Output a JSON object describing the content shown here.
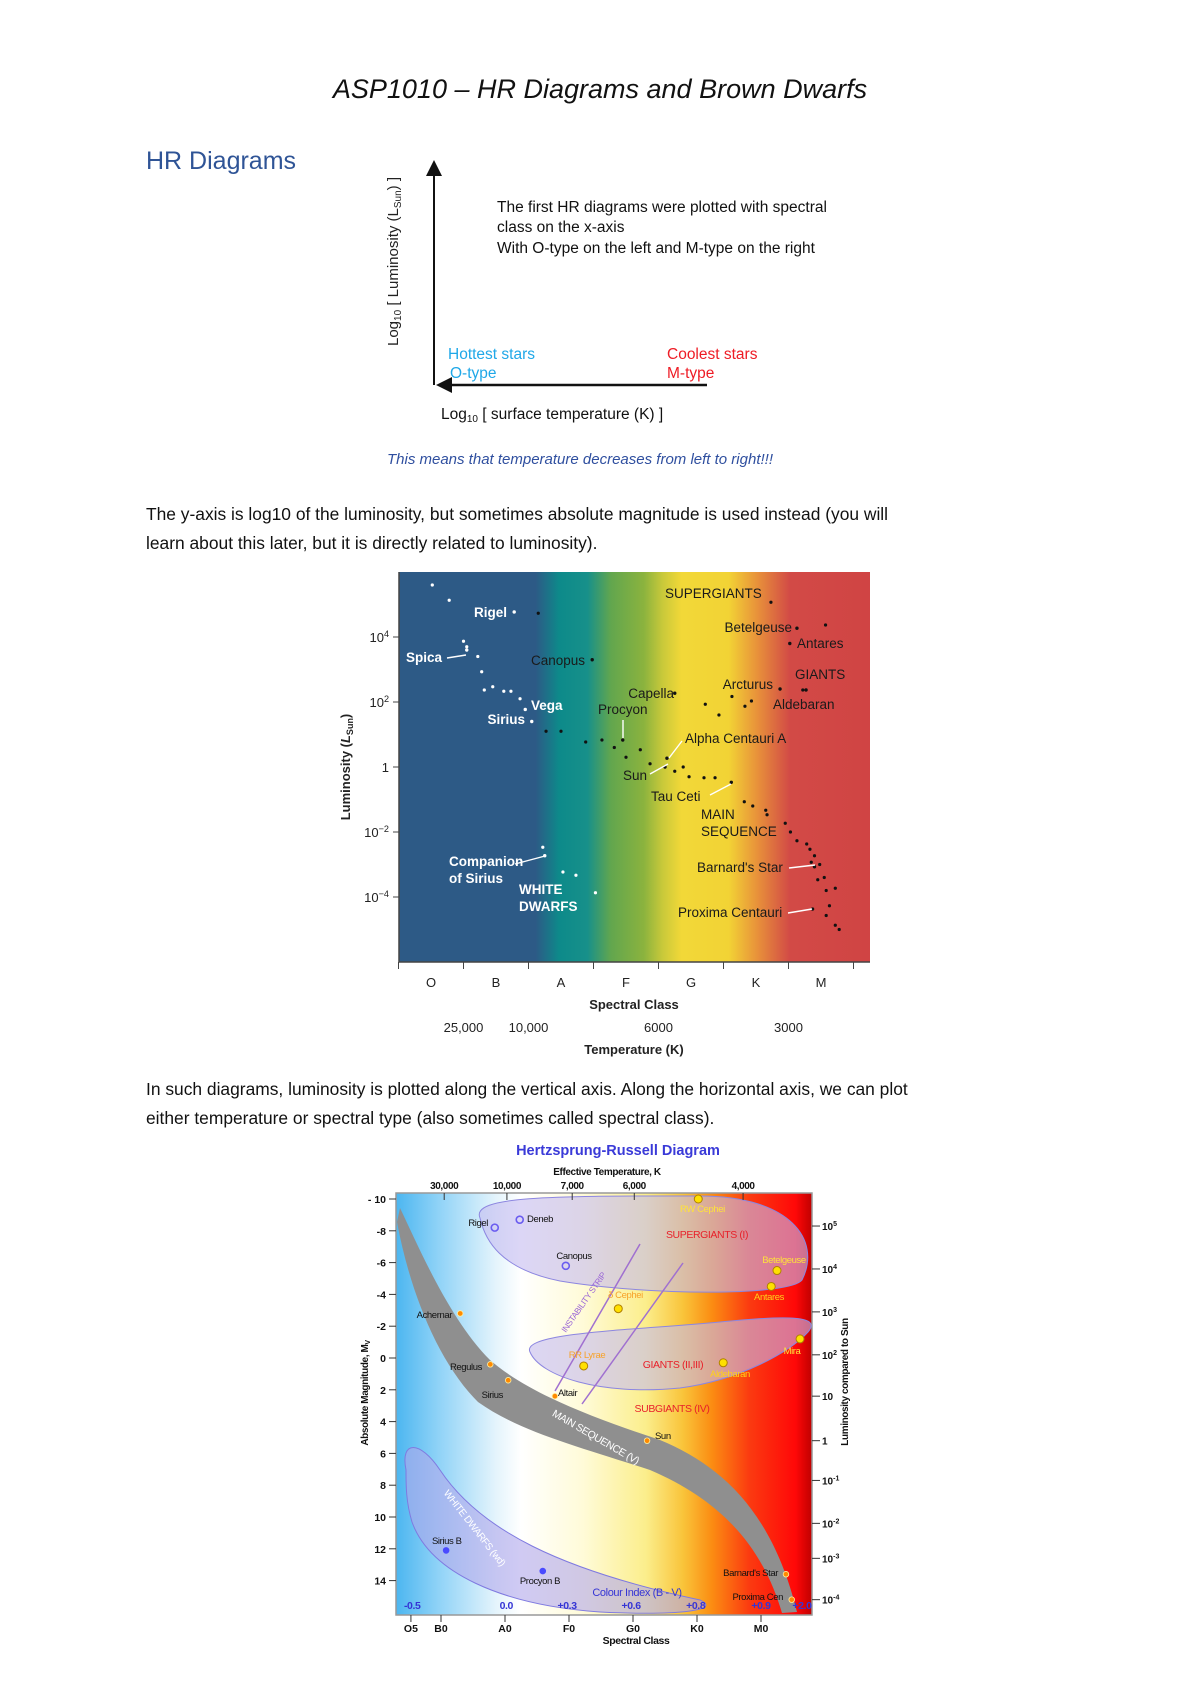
{
  "page": {
    "title": "ASP1010 – HR Diagrams and Brown Dwarfs",
    "section_heading": "HR Diagrams",
    "paragraph_1_lines": [
      "The y-axis is log10 of the luminosity, but sometimes absolute magnitude is used instead (you will",
      "learn about this later, but it is directly related to luminosity)."
    ],
    "paragraph_2_lines": [
      "In such diagrams, luminosity is plotted along the vertical axis. Along the horizontal axis, we can plot",
      "either temperature or spectral type (also sometimes called spectral class)."
    ],
    "colors": {
      "heading": "#2f5496",
      "hot": "#1fa8e8",
      "cool": "#ee1c25",
      "caption": "#2f4f9f"
    }
  },
  "figure1": {
    "y_label": {
      "log": "Log",
      "sub": "10",
      "main": " [ Luminosity (L",
      "sub2": "Sun",
      "end": ") ]"
    },
    "note_lines": [
      "The first HR diagrams were plotted with spectral",
      "class on the x-axis",
      "With O-type on the left and M-type on the right"
    ],
    "hot_label": "Hottest stars",
    "hot_type": "O-type",
    "cool_label": "Coolest stars",
    "cool_type": "M-type",
    "x_label": {
      "log": "Log",
      "sub": "10",
      "main": " [ surface temperature (K) ]"
    },
    "caption": "This means that temperature decreases from left to right!!!"
  },
  "chart_data": [
    {
      "type": "scatter",
      "xlabel": "Spectral Class",
      "x_ticks": [
        "O",
        "B",
        "A",
        "F",
        "G",
        "K",
        "M"
      ],
      "x2label": "Temperature (K)",
      "x2_ticks": [
        {
          "label": "25,000",
          "class_position": 0.5
        },
        {
          "label": "10,000",
          "class_position": 1.5
        },
        {
          "label": "6000",
          "class_position": 3.5
        },
        {
          "label": "3000",
          "class_position": 5.5
        }
      ],
      "ylabel": {
        "main": "Luminosity (",
        "l": "L",
        "sub": "Sun",
        "end": ")"
      },
      "y_scale": "log",
      "ylim_log10": [
        -6,
        6
      ],
      "xlim": [
        -0.5,
        6.75
      ],
      "y_ticks": [
        {
          "log10": 4,
          "base": "10",
          "exp": "4"
        },
        {
          "log10": 2,
          "base": "10",
          "exp": "2"
        },
        {
          "log10": 0,
          "base": "1",
          "exp": ""
        },
        {
          "log10": -2,
          "base": "10",
          "exp": "−2"
        },
        {
          "log10": -4,
          "base": "10",
          "exp": "−4"
        }
      ],
      "background": "spectral colour bands (blue → teal → green → yellow → orange → red)",
      "named_stars": [
        {
          "name": "Rigel",
          "x": 1.28,
          "y": 4.77,
          "dot": "white"
        },
        {
          "name": "Spica",
          "x": 0.55,
          "y": 3.6,
          "dot": "white"
        },
        {
          "name": "Canopus",
          "x": 2.48,
          "y": 3.3,
          "dot": "black"
        },
        {
          "name": "Vega",
          "x": 1.45,
          "y": 1.77,
          "dot": "white"
        },
        {
          "name": "Sirius",
          "x": 1.55,
          "y": 1.4,
          "dot": "white"
        },
        {
          "name": "Capella",
          "x": 3.75,
          "y": 2.27,
          "dot": "black"
        },
        {
          "name": "Procyon",
          "x": 2.95,
          "y": 0.83,
          "dot": "black"
        },
        {
          "name": "Alpha Centauri A",
          "x": 3.63,
          "y": 0.27,
          "dot": "black"
        },
        {
          "name": "Sun",
          "x": 3.6,
          "y": 0.0,
          "dot": "black"
        },
        {
          "name": "Tau Ceti",
          "x": 4.62,
          "y": -0.47,
          "dot": "black"
        },
        {
          "name": "Betelgeuse",
          "x": 5.63,
          "y": 4.27,
          "dot": "black"
        },
        {
          "name": "Antares",
          "x": 5.52,
          "y": 3.8,
          "dot": "black"
        },
        {
          "name": "Arcturus",
          "x": 5.37,
          "y": 2.4,
          "dot": "black"
        },
        {
          "name": "Aldebaran",
          "x": 5.77,
          "y": 2.37,
          "dot": "black"
        },
        {
          "name": "Barnard's Star",
          "x": 5.9,
          "y": -3.07,
          "dot": "black"
        },
        {
          "name": "Proxima Centauri",
          "x": 5.87,
          "y": -4.37,
          "dot": "black"
        },
        {
          "name": "Companion of Sirius",
          "name_lines": [
            "Companion",
            "of Sirius"
          ],
          "x": 1.75,
          "y": -2.73,
          "dot": "white"
        }
      ],
      "region_labels": [
        {
          "lines": [
            "SUPERGIANTS"
          ]
        },
        {
          "lines": [
            "GIANTS"
          ]
        },
        {
          "lines": [
            "MAIN",
            "SEQUENCE"
          ]
        },
        {
          "lines": [
            "WHITE",
            "DWARFS"
          ]
        }
      ],
      "white_points": [
        [
          0.02,
          5.6
        ],
        [
          0.28,
          5.13
        ],
        [
          0.5,
          3.87
        ],
        [
          0.55,
          3.7
        ],
        [
          0.72,
          3.4
        ],
        [
          0.78,
          2.93
        ],
        [
          0.82,
          2.37
        ],
        [
          0.95,
          2.47
        ],
        [
          1.12,
          2.33
        ],
        [
          1.23,
          2.33
        ],
        [
          1.37,
          2.1
        ],
        [
          1.72,
          -2.47
        ],
        [
          2.03,
          -3.23
        ],
        [
          2.23,
          -3.33
        ],
        [
          2.53,
          -3.87
        ]
      ],
      "black_points": [
        [
          1.65,
          4.73
        ],
        [
          1.77,
          1.1
        ],
        [
          2.0,
          1.1
        ],
        [
          2.38,
          0.77
        ],
        [
          2.63,
          0.83
        ],
        [
          2.82,
          0.6
        ],
        [
          3.0,
          0.3
        ],
        [
          3.22,
          0.53
        ],
        [
          3.37,
          0.1
        ],
        [
          3.75,
          -0.13
        ],
        [
          3.88,
          0
        ],
        [
          3.97,
          -0.3
        ],
        [
          4.2,
          -0.33
        ],
        [
          4.37,
          -0.33
        ],
        [
          4.82,
          -1.07
        ],
        [
          4.95,
          -1.2
        ],
        [
          5.15,
          -1.33
        ],
        [
          5.17,
          -1.47
        ],
        [
          5.45,
          -1.73
        ],
        [
          5.53,
          -2.0
        ],
        [
          5.63,
          -2.27
        ],
        [
          5.78,
          -2.37
        ],
        [
          5.83,
          -2.53
        ],
        [
          5.9,
          -2.73
        ],
        [
          5.85,
          -2.93
        ],
        [
          5.98,
          -3.0
        ],
        [
          6.05,
          -3.4
        ],
        [
          5.95,
          -3.47
        ],
        [
          6.08,
          -3.8
        ],
        [
          6.22,
          -3.73
        ],
        [
          6.13,
          -4.27
        ],
        [
          6.08,
          -4.57
        ],
        [
          6.22,
          -4.87
        ],
        [
          6.28,
          -5.0
        ],
        [
          4.22,
          1.93
        ],
        [
          4.43,
          1.6
        ],
        [
          4.63,
          2.17
        ],
        [
          4.83,
          1.87
        ],
        [
          4.93,
          2.03
        ],
        [
          5.23,
          5.07
        ],
        [
          6.07,
          4.37
        ],
        [
          5.72,
          2.37
        ]
      ]
    },
    {
      "type": "scatter",
      "title": "Hertzsprung-Russell Diagram",
      "x2label": "Effective Temperature, K",
      "x2_ticks": [
        {
          "label": "30,000",
          "class_position": 1.05
        },
        {
          "label": "10,000",
          "class_position": 2.03
        },
        {
          "label": "7,000",
          "class_position": 3.05
        },
        {
          "label": "6,000",
          "class_position": 4.02
        },
        {
          "label": "4,000",
          "class_position": 5.72
        }
      ],
      "xlabel": "Spectral Class",
      "x_ticks": [
        {
          "label": "O5",
          "class_position": 0.53
        },
        {
          "label": "B0",
          "class_position": 1
        },
        {
          "label": "A0",
          "class_position": 2
        },
        {
          "label": "F0",
          "class_position": 3
        },
        {
          "label": "G0",
          "class_position": 4
        },
        {
          "label": "K0",
          "class_position": 5
        },
        {
          "label": "M0",
          "class_position": 6
        }
      ],
      "colour_index_label": "Colour Index (B - V)",
      "colour_index_ticks": [
        {
          "label": "-0.5",
          "class_position": 0.55
        },
        {
          "label": "0.0",
          "class_position": 2.02
        },
        {
          "label": "+0.3",
          "class_position": 2.97
        },
        {
          "label": "+0.6",
          "class_position": 3.97
        },
        {
          "label": "+0.8",
          "class_position": 4.98
        },
        {
          "label": "+0.9",
          "class_position": 6.0
        },
        {
          "label": "+2.0",
          "class_position": 6.64
        }
      ],
      "ylabel": {
        "main": "Absolute Magnitude, M",
        "sub": "V"
      },
      "ylim": [
        -10,
        15.5
      ],
      "y_inverted": true,
      "y_ticks": [
        "- 10",
        "-8",
        "-6",
        "-4",
        "-2",
        "0",
        "2",
        "4",
        "6",
        "8",
        "10",
        "12",
        "14"
      ],
      "y2label": "Luminosity compared to Sun",
      "y2_ticks": [
        {
          "base": "10",
          "exp": "5",
          "abs_magnitude": -8.3
        },
        {
          "base": "10",
          "exp": "4",
          "abs_magnitude": -5.6
        },
        {
          "base": "10",
          "exp": "3",
          "abs_magnitude": -2.9
        },
        {
          "base": "10",
          "exp": "2",
          "abs_magnitude": -0.2
        },
        {
          "base": "10",
          "exp": "",
          "abs_magnitude": 2.4
        },
        {
          "base": "1",
          "exp": "",
          "abs_magnitude": 5.2
        },
        {
          "base": "10",
          "exp": "-1",
          "abs_magnitude": 7.7
        },
        {
          "base": "10",
          "exp": "-2",
          "abs_magnitude": 10.4
        },
        {
          "base": "10",
          "exp": "-3",
          "abs_magnitude": 12.6
        },
        {
          "base": "10",
          "exp": "-4",
          "abs_magnitude": 15.2
        }
      ],
      "regions": {
        "supergiants": "SUPERGIANTS (I)",
        "giants": "GIANTS (II,III)",
        "subgiants": "SUBGIANTS (IV)",
        "main_sequence": "MAIN SEQUENCE (V)",
        "white_dwarfs": "WHITE DWARFS (wd)",
        "instability_strip": "INSTABILITY STRIP"
      },
      "colors": {
        "title": "#3a3ad8",
        "region_label": "#e8202a",
        "instability": "#9a66d6",
        "colour_index": "#3535d5"
      },
      "stars": [
        {
          "name": "Rigel",
          "class_position": 1.84,
          "abs_magnitude": -8.2,
          "marker": "blue-ring"
        },
        {
          "name": "Deneb",
          "class_position": 2.23,
          "abs_magnitude": -8.7,
          "marker": "blue-ring"
        },
        {
          "name": "Canopus",
          "class_position": 2.95,
          "abs_magnitude": -5.8,
          "marker": "blue-ring"
        },
        {
          "name": "RW Cephei",
          "class_position": 5.02,
          "abs_magnitude": -10.0,
          "marker": "yellow"
        },
        {
          "name": "Betelgeuse",
          "class_position": 6.25,
          "abs_magnitude": -5.5,
          "marker": "yellow"
        },
        {
          "name": "Antares",
          "class_position": 6.16,
          "abs_magnitude": -4.5,
          "marker": "yellow"
        },
        {
          "name": "δ Cephei",
          "class_position": 3.77,
          "abs_magnitude": -3.1,
          "marker": "yellow"
        },
        {
          "name": "Achernar",
          "class_position": 1.3,
          "abs_magnitude": -2.8,
          "marker": "orange"
        },
        {
          "name": "Regulus",
          "class_position": 1.77,
          "abs_magnitude": 0.4,
          "marker": "orange"
        },
        {
          "name": "Sirius",
          "class_position": 2.05,
          "abs_magnitude": 1.4,
          "marker": "orange"
        },
        {
          "name": "Altair",
          "class_position": 2.78,
          "abs_magnitude": 2.4,
          "marker": "orange"
        },
        {
          "name": "Sun",
          "class_position": 4.22,
          "abs_magnitude": 5.2,
          "marker": "orange"
        },
        {
          "name": "RR Lyrae",
          "class_position": 3.23,
          "abs_magnitude": 0.5,
          "marker": "yellow"
        },
        {
          "name": "Aldebaran",
          "class_position": 5.41,
          "abs_magnitude": 0.3,
          "marker": "yellow"
        },
        {
          "name": "Mira",
          "class_position": 6.61,
          "abs_magnitude": -1.2,
          "marker": "yellow"
        },
        {
          "name": "Sirius B",
          "class_position": 1.08,
          "abs_magnitude": 12.1,
          "marker": "blue"
        },
        {
          "name": "Procyon B",
          "class_position": 2.59,
          "abs_magnitude": 13.4,
          "marker": "blue"
        },
        {
          "name": "Barnard's Star",
          "class_position": 6.39,
          "abs_magnitude": 13.6,
          "marker": "orange"
        },
        {
          "name": "Proxima Cen",
          "class_position": 6.48,
          "abs_magnitude": 15.2,
          "marker": "orange"
        }
      ]
    }
  ]
}
